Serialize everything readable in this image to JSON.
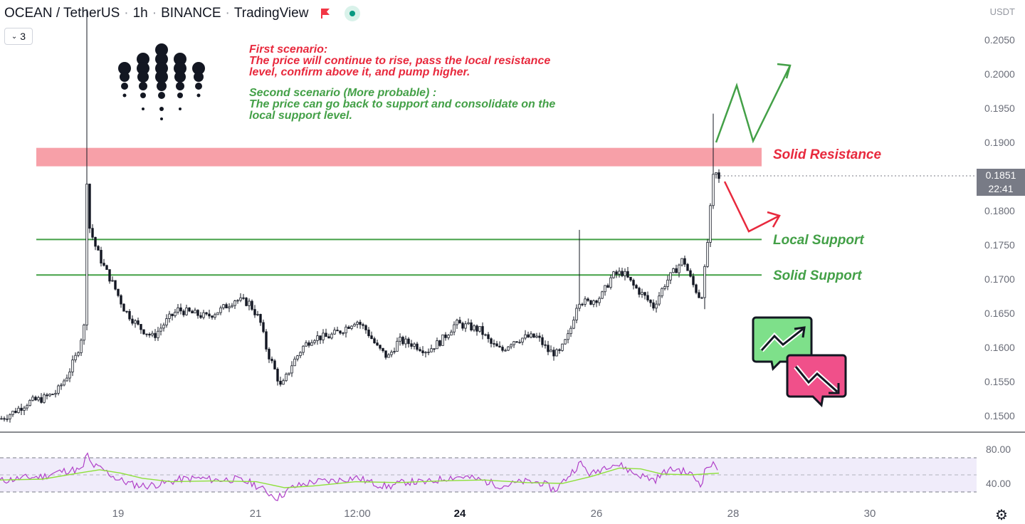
{
  "header": {
    "symbol": "OCEAN / TetherUS",
    "interval": "1h",
    "exchange": "BINANCE",
    "platform": "TradingView",
    "collapse_count": "3"
  },
  "currency_label": "USDT",
  "y_ticks": [
    "0.2050",
    "0.2000",
    "0.1950",
    "0.1900",
    "0.1800",
    "0.1750",
    "0.1700",
    "0.1650",
    "0.1600",
    "0.1550",
    "0.1500"
  ],
  "current_price": {
    "value": "0.1851",
    "countdown": "22:41"
  },
  "x_ticks": [
    {
      "label": "19",
      "bold": false
    },
    {
      "label": "21",
      "bold": false
    },
    {
      "label": "12:00",
      "bold": false
    },
    {
      "label": "24",
      "bold": true
    },
    {
      "label": "26",
      "bold": false
    },
    {
      "label": "28",
      "bold": false
    },
    {
      "label": "30",
      "bold": false
    }
  ],
  "rsi_ticks": [
    "80.00",
    "40.00"
  ],
  "annotations": {
    "first_title": "First scenario:",
    "first_line1": "The price will continue to rise, pass the local resistance",
    "first_line2": "level, confirm above it, and pump higher.",
    "second_title": "Second scenario (More probable) :",
    "second_line1": "The price can go back to support and consolidate on the",
    "second_line2": "local support level."
  },
  "levels": {
    "resistance_label": "Solid Resistance",
    "local_support_label": "Local Support",
    "solid_support_label": "Solid Support"
  },
  "colors": {
    "up": "#089981",
    "down": "#131722",
    "resistance_zone": "#f7a0a8",
    "support_line": "#43a047",
    "scenario_up": "#43a047",
    "scenario_down": "#e8293d",
    "rsi_line": "#b040c8",
    "rsi_ma": "#8ee03a"
  },
  "chart_data": {
    "type": "candlestick",
    "symbol": "OCEAN/USDT",
    "ylim": [
      0.1475,
      0.2075
    ],
    "resistance_zone": [
      0.1865,
      0.1892
    ],
    "local_support": 0.1758,
    "solid_support": 0.1706,
    "current_price": 0.1851,
    "price_path": [
      [
        0,
        0.1495
      ],
      [
        18,
        0.1505
      ],
      [
        40,
        0.152
      ],
      [
        60,
        0.1525
      ],
      [
        80,
        0.1535
      ],
      [
        95,
        0.156
      ],
      [
        108,
        0.159
      ],
      [
        118,
        0.163
      ],
      [
        122,
        0.1845
      ],
      [
        126,
        0.1775
      ],
      [
        135,
        0.1745
      ],
      [
        145,
        0.172
      ],
      [
        160,
        0.169
      ],
      [
        175,
        0.1655
      ],
      [
        195,
        0.163
      ],
      [
        215,
        0.1615
      ],
      [
        235,
        0.164
      ],
      [
        250,
        0.1655
      ],
      [
        270,
        0.165
      ],
      [
        290,
        0.1645
      ],
      [
        310,
        0.1655
      ],
      [
        330,
        0.167
      ],
      [
        350,
        0.1665
      ],
      [
        365,
        0.164
      ],
      [
        375,
        0.1595
      ],
      [
        385,
        0.157
      ],
      [
        395,
        0.154
      ],
      [
        410,
        0.1575
      ],
      [
        425,
        0.16
      ],
      [
        440,
        0.1615
      ],
      [
        460,
        0.1615
      ],
      [
        480,
        0.1625
      ],
      [
        500,
        0.164
      ],
      [
        515,
        0.1625
      ],
      [
        530,
        0.16
      ],
      [
        545,
        0.1585
      ],
      [
        560,
        0.161
      ],
      [
        580,
        0.1605
      ],
      [
        600,
        0.1595
      ],
      [
        620,
        0.161
      ],
      [
        640,
        0.1635
      ],
      [
        660,
        0.163
      ],
      [
        675,
        0.1625
      ],
      [
        690,
        0.1605
      ],
      [
        705,
        0.1595
      ],
      [
        720,
        0.161
      ],
      [
        740,
        0.1615
      ],
      [
        755,
        0.1615
      ],
      [
        770,
        0.1595
      ],
      [
        785,
        0.159
      ],
      [
        800,
        0.162
      ],
      [
        812,
        0.167
      ],
      [
        825,
        0.1665
      ],
      [
        845,
        0.1675
      ],
      [
        860,
        0.1705
      ],
      [
        875,
        0.171
      ],
      [
        890,
        0.169
      ],
      [
        905,
        0.1675
      ],
      [
        918,
        0.166
      ],
      [
        935,
        0.1695
      ],
      [
        950,
        0.1715
      ],
      [
        960,
        0.173
      ],
      [
        972,
        0.1695
      ],
      [
        985,
        0.167
      ],
      [
        992,
        0.173
      ],
      [
        997,
        0.179
      ],
      [
        1003,
        0.186
      ],
      [
        1010,
        0.1845
      ],
      [
        1012,
        0.1851
      ]
    ],
    "rsi": {
      "upper": 80,
      "lower": 40,
      "series": [
        [
          0,
          53
        ],
        [
          20,
          55
        ],
        [
          40,
          57
        ],
        [
          60,
          58
        ],
        [
          80,
          63
        ],
        [
          100,
          66
        ],
        [
          115,
          65
        ],
        [
          122,
          85
        ],
        [
          128,
          72
        ],
        [
          145,
          66
        ],
        [
          165,
          55
        ],
        [
          185,
          49
        ],
        [
          205,
          47
        ],
        [
          230,
          50
        ],
        [
          255,
          55
        ],
        [
          280,
          56
        ],
        [
          305,
          54
        ],
        [
          330,
          55
        ],
        [
          355,
          50
        ],
        [
          375,
          40
        ],
        [
          390,
          33
        ],
        [
          410,
          45
        ],
        [
          440,
          52
        ],
        [
          470,
          53
        ],
        [
          500,
          57
        ],
        [
          525,
          50
        ],
        [
          545,
          46
        ],
        [
          570,
          52
        ],
        [
          600,
          51
        ],
        [
          630,
          57
        ],
        [
          650,
          58
        ],
        [
          680,
          53
        ],
        [
          705,
          47
        ],
        [
          735,
          52
        ],
        [
          760,
          51
        ],
        [
          780,
          42
        ],
        [
          800,
          60
        ],
        [
          815,
          74
        ],
        [
          830,
          60
        ],
        [
          850,
          70
        ],
        [
          860,
          73
        ],
        [
          875,
          70
        ],
        [
          890,
          62
        ],
        [
          905,
          58
        ],
        [
          920,
          54
        ],
        [
          935,
          64
        ],
        [
          950,
          67
        ],
        [
          970,
          61
        ],
        [
          985,
          49
        ],
        [
          992,
          69
        ],
        [
          1000,
          72
        ],
        [
          1010,
          68
        ]
      ],
      "ma": [
        [
          0,
          54
        ],
        [
          60,
          55
        ],
        [
          110,
          62
        ],
        [
          140,
          66
        ],
        [
          170,
          62
        ],
        [
          200,
          56
        ],
        [
          240,
          52
        ],
        [
          300,
          53
        ],
        [
          360,
          52
        ],
        [
          400,
          45
        ],
        [
          440,
          47
        ],
        [
          500,
          52
        ],
        [
          560,
          51
        ],
        [
          620,
          53
        ],
        [
          680,
          54
        ],
        [
          740,
          51
        ],
        [
          790,
          50
        ],
        [
          830,
          58
        ],
        [
          870,
          68
        ],
        [
          900,
          67
        ],
        [
          930,
          61
        ],
        [
          970,
          60
        ],
        [
          1010,
          62
        ]
      ]
    }
  }
}
